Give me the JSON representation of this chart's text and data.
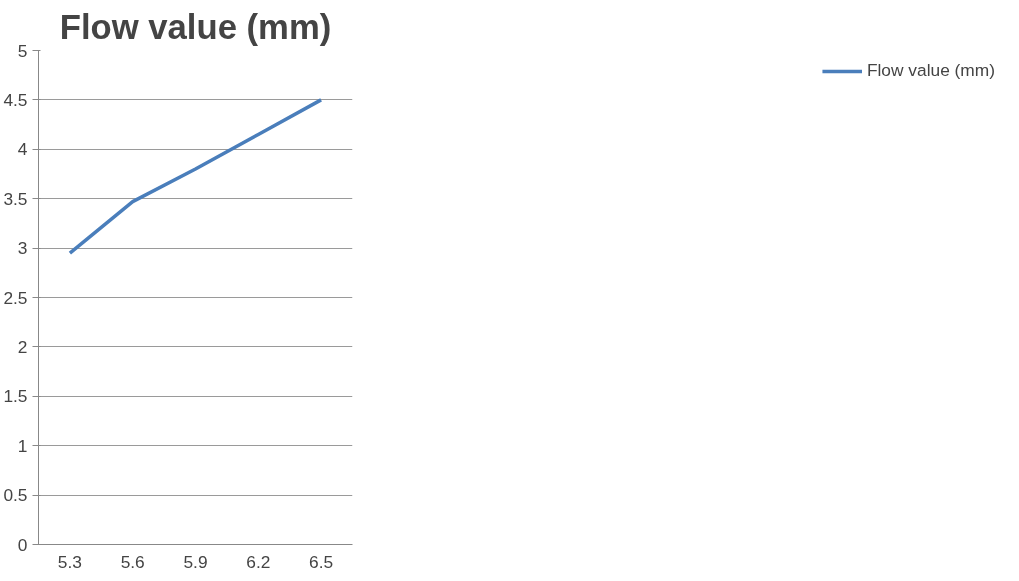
{
  "chart_data": {
    "type": "line",
    "title": "Flow value (mm)",
    "categories": [
      "5.3",
      "5.6",
      "5.9",
      "6.2",
      "6.5"
    ],
    "series": [
      {
        "name": "Flow value (mm)",
        "color": "#4a7ebb",
        "values": [
          2.95,
          3.47,
          3.8,
          4.15,
          4.5
        ]
      }
    ],
    "ylim": [
      0,
      5
    ],
    "yticks": [
      0,
      0.5,
      1,
      1.5,
      2,
      2.5,
      3,
      3.5,
      4,
      4.5,
      5
    ],
    "grid": "y",
    "legend": "right",
    "marker": "none",
    "line_style": "solid"
  }
}
